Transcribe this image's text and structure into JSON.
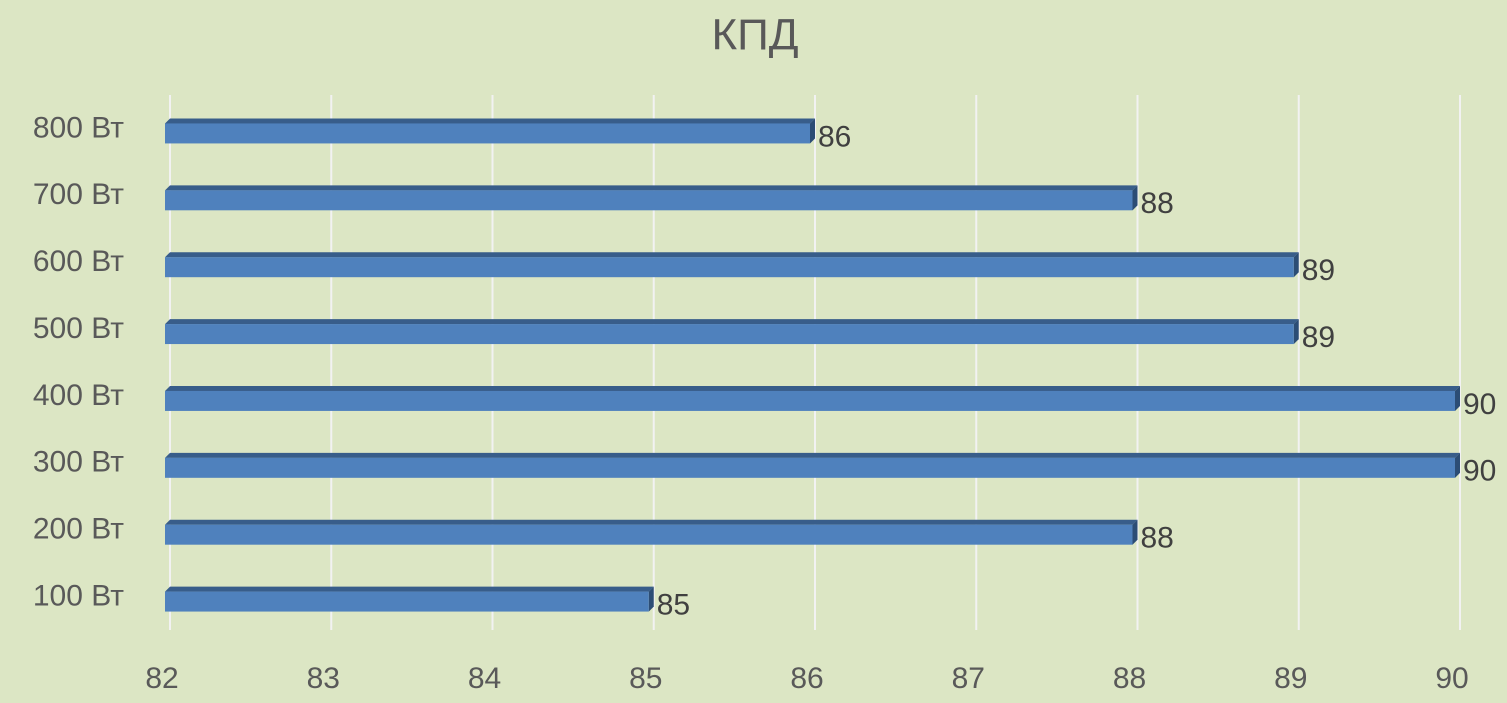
{
  "chart_data": {
    "type": "bar",
    "orientation": "horizontal",
    "title": "КПД",
    "categories": [
      "100 Вт",
      "200 Вт",
      "300 Вт",
      "400 Вт",
      "500 Вт",
      "600 Вт",
      "700 Вт",
      "800 Вт"
    ],
    "values": [
      85,
      88,
      90,
      90,
      89,
      89,
      88,
      86
    ],
    "color": "#4f81bd",
    "xlim": [
      82,
      90
    ],
    "xticks": [
      82,
      83,
      84,
      85,
      86,
      87,
      88,
      89,
      90
    ],
    "grid": true
  }
}
